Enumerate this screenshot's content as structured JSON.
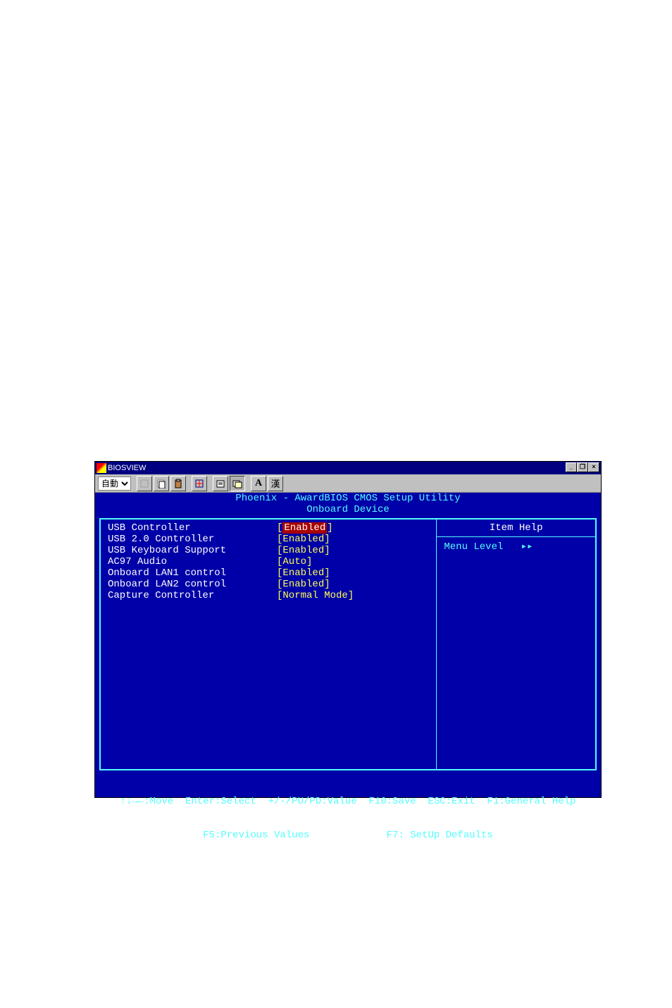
{
  "window": {
    "title": "BIOSVIEW",
    "dropdown_value": "自動",
    "toolbar_buttons": [
      "select",
      "copy",
      "paste",
      "",
      "fullscreen",
      "",
      "props",
      "background",
      "",
      "font",
      "ime"
    ],
    "font_label": "A",
    "ime_label": "漢"
  },
  "bios": {
    "title1": "Phoenix - AwardBIOS CMOS Setup Utility",
    "title2": "Onboard Device",
    "help_header": "Item Help",
    "menu_level_label": "Menu Level",
    "menu_level_icon": "▸▸",
    "settings": [
      {
        "label": "USB Controller",
        "value": "Enabled",
        "selected": true
      },
      {
        "label": "USB 2.0 Controller",
        "value": "Enabled",
        "selected": false
      },
      {
        "label": "USB Keyboard Support",
        "value": "Enabled",
        "selected": false
      },
      {
        "label": "AC97 Audio",
        "value": "Auto",
        "selected": false
      },
      {
        "label": "Onboard LAN1 control",
        "value": "Enabled",
        "selected": false
      },
      {
        "label": "Onboard LAN2 control",
        "value": "Enabled",
        "selected": false
      },
      {
        "label": "Capture Controller",
        "value": "Normal Mode",
        "selected": false
      }
    ],
    "footer1": "↑↓→←:Move  Enter:Select  +/-/PU/PD:Value  F10:Save  ESC:Exit  F1:General Help",
    "footer2": "F5:Previous Values             F7: SetUp Defaults"
  },
  "colors": {
    "bios_bg": "#0000a8",
    "bios_cyan": "#54fcfc",
    "bios_yellow": "#ffff54",
    "bios_white": "#ffffff",
    "bios_sel_bg": "#a80000",
    "win_titlebar": "#000080",
    "win_face": "#c0c0c0"
  }
}
